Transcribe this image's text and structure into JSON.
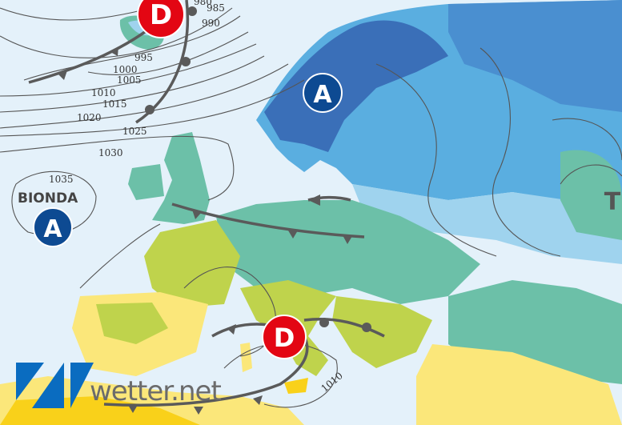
{
  "map": {
    "colors": {
      "sea": "#e4f1fa",
      "high_marker": "#0d4a92",
      "low_marker": "#e30613",
      "cold_dark": "#3a6fb8",
      "cold_mid": "#5aaee0",
      "cold_light": "#9fd3ee",
      "teal": "#6cc0a8",
      "green_yellow": "#bfd34c",
      "yellow": "#fbe77a",
      "deep_yellow": "#f9d11a"
    },
    "isobar_labels": [
      "980",
      "985",
      "990",
      "995",
      "1000",
      "1005",
      "1010",
      "1015",
      "1020",
      "1025",
      "1030",
      "1035",
      "1010"
    ],
    "pressure_systems": [
      {
        "type": "high",
        "label": "A",
        "name": "BIONDA"
      },
      {
        "type": "high",
        "label": "A",
        "name": ""
      },
      {
        "type": "low",
        "label": "D",
        "name": ""
      },
      {
        "type": "low",
        "label": "D",
        "name": ""
      },
      {
        "type": "low",
        "label": "T",
        "name": ""
      }
    ],
    "fronts": [
      "cold",
      "warm",
      "cold",
      "occluded",
      "cold"
    ]
  },
  "logo": {
    "text": "wetter.net",
    "color": "#0a6cc0"
  }
}
